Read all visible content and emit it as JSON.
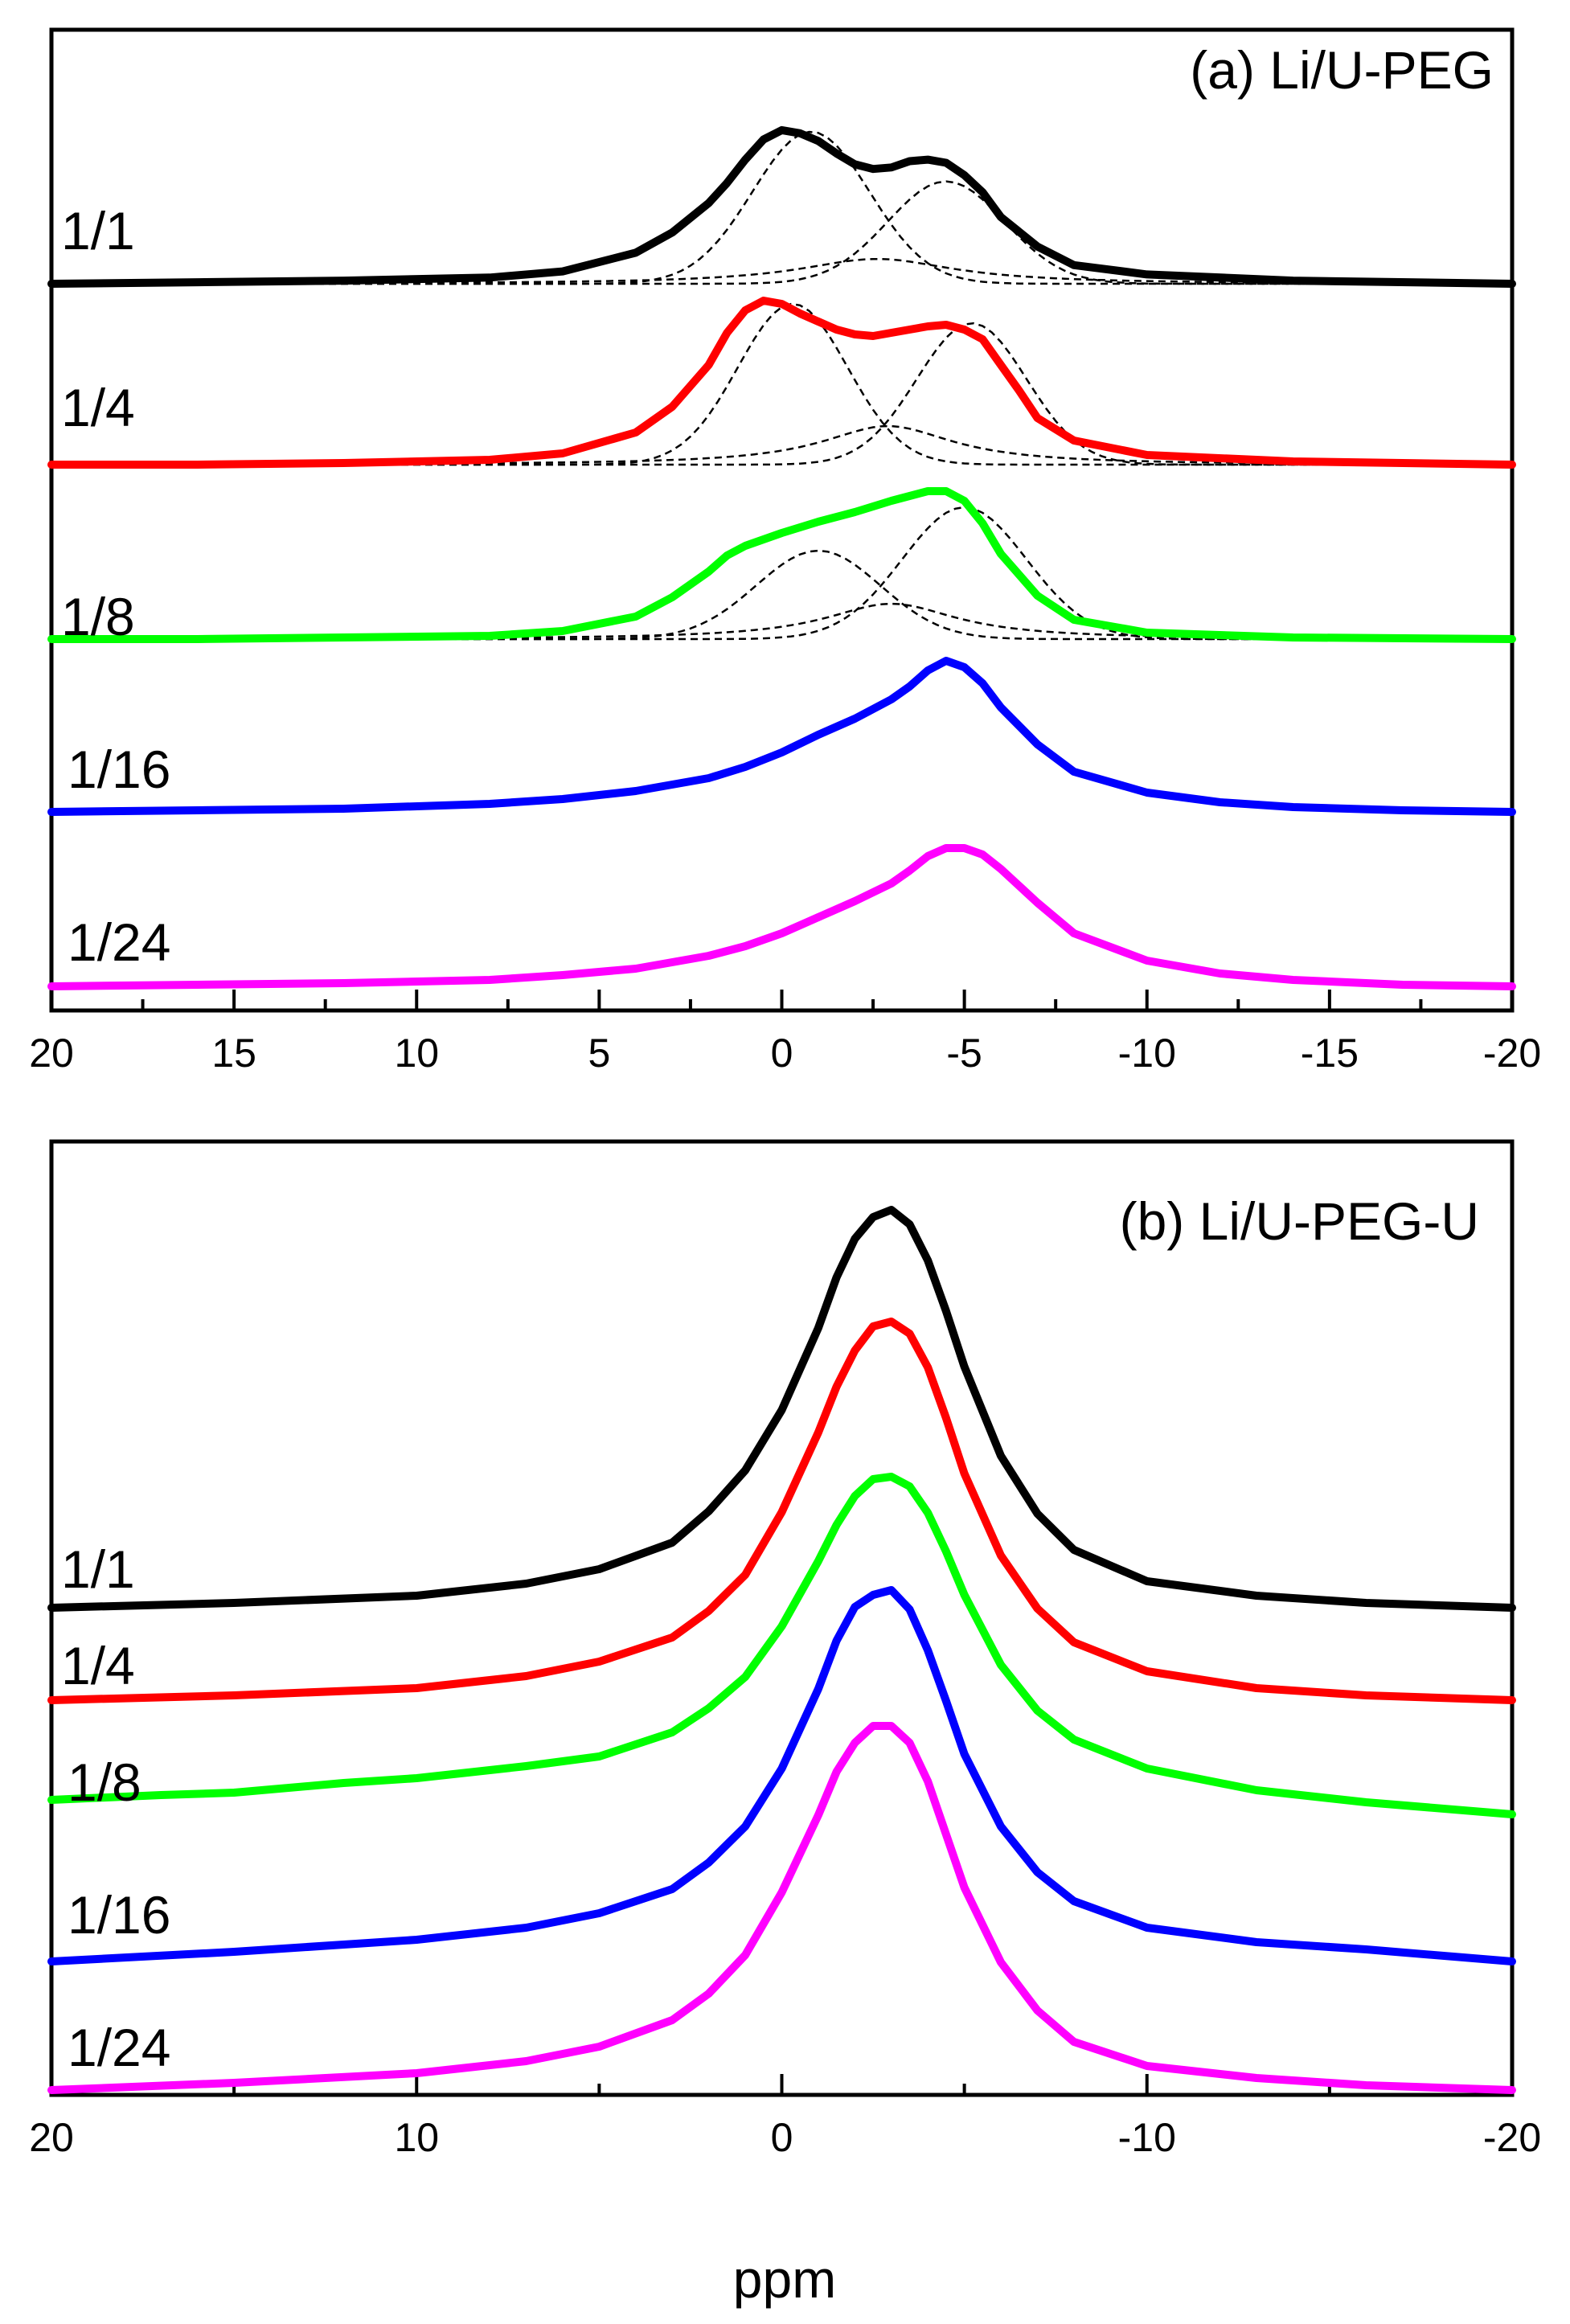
{
  "chart_data": [
    {
      "type": "line",
      "title": "(a) Li/U-PEG",
      "xlabel": "",
      "ylabel": "",
      "xlim": [
        20,
        -20
      ],
      "x_ticks": [
        20,
        15,
        10,
        5,
        0,
        -5,
        -10,
        -15,
        -20
      ],
      "x_tick_labels": [
        "20",
        "15",
        "10",
        "5",
        "0",
        "-5",
        "-10",
        "-15",
        "-20"
      ],
      "minor_tick_step": 2.5,
      "grid": false,
      "stacked_offset": true,
      "series": [
        {
          "name": "1/1",
          "color": "#000000",
          "dashed_fits": true,
          "x": [
            20,
            16,
            12,
            8,
            6,
            4,
            3,
            2,
            1.5,
            1,
            0.5,
            0,
            -0.5,
            -1,
            -1.5,
            -2,
            -2.5,
            -3,
            -3.5,
            -4,
            -4.5,
            -5,
            -5.5,
            -6,
            -7,
            -8,
            -10,
            -14,
            -20
          ],
          "y": [
            0.0,
            0.01,
            0.02,
            0.04,
            0.08,
            0.2,
            0.33,
            0.52,
            0.65,
            0.8,
            0.93,
            0.99,
            0.97,
            0.92,
            0.84,
            0.77,
            0.74,
            0.75,
            0.79,
            0.8,
            0.78,
            0.7,
            0.59,
            0.43,
            0.24,
            0.12,
            0.06,
            0.02,
            0.0
          ]
        },
        {
          "name": "1/4",
          "color": "#ff0000",
          "dashed_fits": true,
          "x": [
            20,
            16,
            12,
            8,
            6,
            4,
            3,
            2,
            1.5,
            1,
            0.5,
            0,
            -0.5,
            -1,
            -1.5,
            -2,
            -2.5,
            -3,
            -3.5,
            -4,
            -4.5,
            -5,
            -5.5,
            -6,
            -6.5,
            -7,
            -8,
            -10,
            -14,
            -20
          ],
          "y": [
            0.0,
            0.0,
            0.01,
            0.03,
            0.07,
            0.2,
            0.36,
            0.62,
            0.82,
            0.96,
            1.02,
            1.0,
            0.94,
            0.89,
            0.84,
            0.81,
            0.8,
            0.82,
            0.84,
            0.86,
            0.87,
            0.84,
            0.78,
            0.62,
            0.46,
            0.29,
            0.15,
            0.06,
            0.02,
            0.0
          ]
        },
        {
          "name": "1/8",
          "color": "#00ff00",
          "dashed_fits": true,
          "x": [
            20,
            16,
            12,
            8,
            6,
            4,
            3,
            2,
            1.5,
            1,
            0.5,
            0,
            -1,
            -2,
            -3,
            -3.5,
            -4,
            -4.5,
            -5,
            -5.5,
            -6,
            -7,
            -8,
            -10,
            -14,
            -20
          ],
          "y": [
            0.0,
            0.0,
            0.01,
            0.02,
            0.05,
            0.14,
            0.26,
            0.42,
            0.52,
            0.58,
            0.62,
            0.66,
            0.73,
            0.79,
            0.86,
            0.89,
            0.92,
            0.92,
            0.86,
            0.72,
            0.53,
            0.27,
            0.12,
            0.04,
            0.01,
            0.0
          ]
        },
        {
          "name": "1/16",
          "color": "#0000ff",
          "dashed_fits": false,
          "x": [
            20,
            16,
            12,
            8,
            6,
            4,
            2,
            1,
            0,
            -1,
            -2,
            -3,
            -3.5,
            -4,
            -4.5,
            -5,
            -5.5,
            -6,
            -7,
            -8,
            -10,
            -12,
            -14,
            -17,
            -20
          ],
          "y": [
            0.0,
            0.01,
            0.02,
            0.05,
            0.08,
            0.13,
            0.21,
            0.28,
            0.37,
            0.48,
            0.58,
            0.7,
            0.78,
            0.88,
            0.94,
            0.9,
            0.8,
            0.65,
            0.42,
            0.25,
            0.12,
            0.06,
            0.03,
            0.01,
            0.0
          ]
        },
        {
          "name": "1/24",
          "color": "#ff00ff",
          "dashed_fits": false,
          "x": [
            20,
            16,
            12,
            8,
            6,
            4,
            2,
            1,
            0,
            -1,
            -2,
            -3,
            -3.5,
            -4,
            -4.5,
            -5,
            -5.5,
            -6,
            -7,
            -8,
            -10,
            -12,
            -14,
            -17,
            -20
          ],
          "y": [
            0.0,
            0.01,
            0.02,
            0.04,
            0.07,
            0.11,
            0.19,
            0.25,
            0.33,
            0.43,
            0.53,
            0.64,
            0.72,
            0.81,
            0.86,
            0.86,
            0.82,
            0.73,
            0.52,
            0.33,
            0.16,
            0.08,
            0.04,
            0.01,
            0.0
          ]
        }
      ]
    },
    {
      "type": "line",
      "title": "(b) Li/U-PEG-U",
      "xlabel": "ppm",
      "ylabel": "",
      "xlim": [
        20,
        -20
      ],
      "x_ticks": [
        20,
        10,
        0,
        -10,
        -20
      ],
      "x_tick_labels": [
        "20",
        "10",
        "0",
        "-10",
        "-20"
      ],
      "minor_tick_step": 5,
      "grid": false,
      "stacked_offset": true,
      "series": [
        {
          "name": "1/1",
          "color": "#000000",
          "x": [
            20,
            15,
            10,
            7,
            5,
            3,
            2,
            1,
            0,
            -1,
            -1.5,
            -2,
            -2.5,
            -3,
            -3.5,
            -4,
            -4.5,
            -5,
            -6,
            -7,
            -8,
            -10,
            -13,
            -16,
            -20
          ],
          "y": [
            0.0,
            0.02,
            0.05,
            0.1,
            0.16,
            0.27,
            0.4,
            0.57,
            0.82,
            1.16,
            1.37,
            1.53,
            1.62,
            1.65,
            1.59,
            1.44,
            1.23,
            1.0,
            0.63,
            0.39,
            0.24,
            0.11,
            0.05,
            0.02,
            0.0
          ]
        },
        {
          "name": "1/4",
          "color": "#ff0000",
          "x": [
            20,
            15,
            10,
            7,
            5,
            3,
            2,
            1,
            0,
            -1,
            -1.5,
            -2,
            -2.5,
            -3,
            -3.5,
            -4,
            -4.5,
            -5,
            -6,
            -7,
            -8,
            -10,
            -13,
            -16,
            -20
          ],
          "y": [
            0.0,
            0.02,
            0.05,
            0.1,
            0.16,
            0.26,
            0.37,
            0.52,
            0.78,
            1.11,
            1.3,
            1.45,
            1.55,
            1.57,
            1.52,
            1.38,
            1.17,
            0.94,
            0.6,
            0.38,
            0.24,
            0.12,
            0.05,
            0.02,
            0.0
          ]
        },
        {
          "name": "1/8",
          "color": "#00ff00",
          "x": [
            20,
            17,
            15,
            12,
            10,
            7,
            5,
            3,
            2,
            1,
            0,
            -1,
            -1.5,
            -2,
            -2.5,
            -3,
            -3.5,
            -4,
            -4.5,
            -5,
            -6,
            -7,
            -8,
            -10,
            -13,
            -16,
            -20
          ],
          "y": [
            0.07,
            0.09,
            0.1,
            0.14,
            0.16,
            0.21,
            0.25,
            0.35,
            0.45,
            0.58,
            0.79,
            1.06,
            1.21,
            1.33,
            1.4,
            1.41,
            1.37,
            1.26,
            1.1,
            0.92,
            0.63,
            0.44,
            0.32,
            0.2,
            0.11,
            0.06,
            0.01
          ]
        },
        {
          "name": "1/16",
          "color": "#0000ff",
          "x": [
            20,
            15,
            10,
            7,
            5,
            3,
            2,
            1,
            0,
            -1,
            -1.5,
            -2,
            -2.5,
            -3,
            -3.5,
            -4,
            -4.5,
            -5,
            -6,
            -7,
            -8,
            -10,
            -13,
            -16,
            -20
          ],
          "y": [
            0.0,
            0.04,
            0.09,
            0.14,
            0.2,
            0.3,
            0.41,
            0.56,
            0.8,
            1.13,
            1.33,
            1.47,
            1.52,
            1.54,
            1.46,
            1.29,
            1.08,
            0.86,
            0.56,
            0.37,
            0.25,
            0.14,
            0.08,
            0.05,
            0.0
          ]
        },
        {
          "name": "1/24",
          "color": "#ff00ff",
          "x": [
            20,
            15,
            10,
            7,
            5,
            3,
            2,
            1,
            0,
            -1,
            -1.5,
            -2,
            -2.5,
            -3,
            -3.5,
            -4,
            -4.5,
            -5,
            -6,
            -7,
            -8,
            -10,
            -13,
            -16,
            -20
          ],
          "y": [
            0.0,
            0.03,
            0.07,
            0.12,
            0.18,
            0.29,
            0.4,
            0.56,
            0.82,
            1.14,
            1.32,
            1.44,
            1.51,
            1.51,
            1.44,
            1.28,
            1.06,
            0.84,
            0.53,
            0.33,
            0.2,
            0.1,
            0.05,
            0.02,
            0.0
          ]
        }
      ]
    }
  ]
}
